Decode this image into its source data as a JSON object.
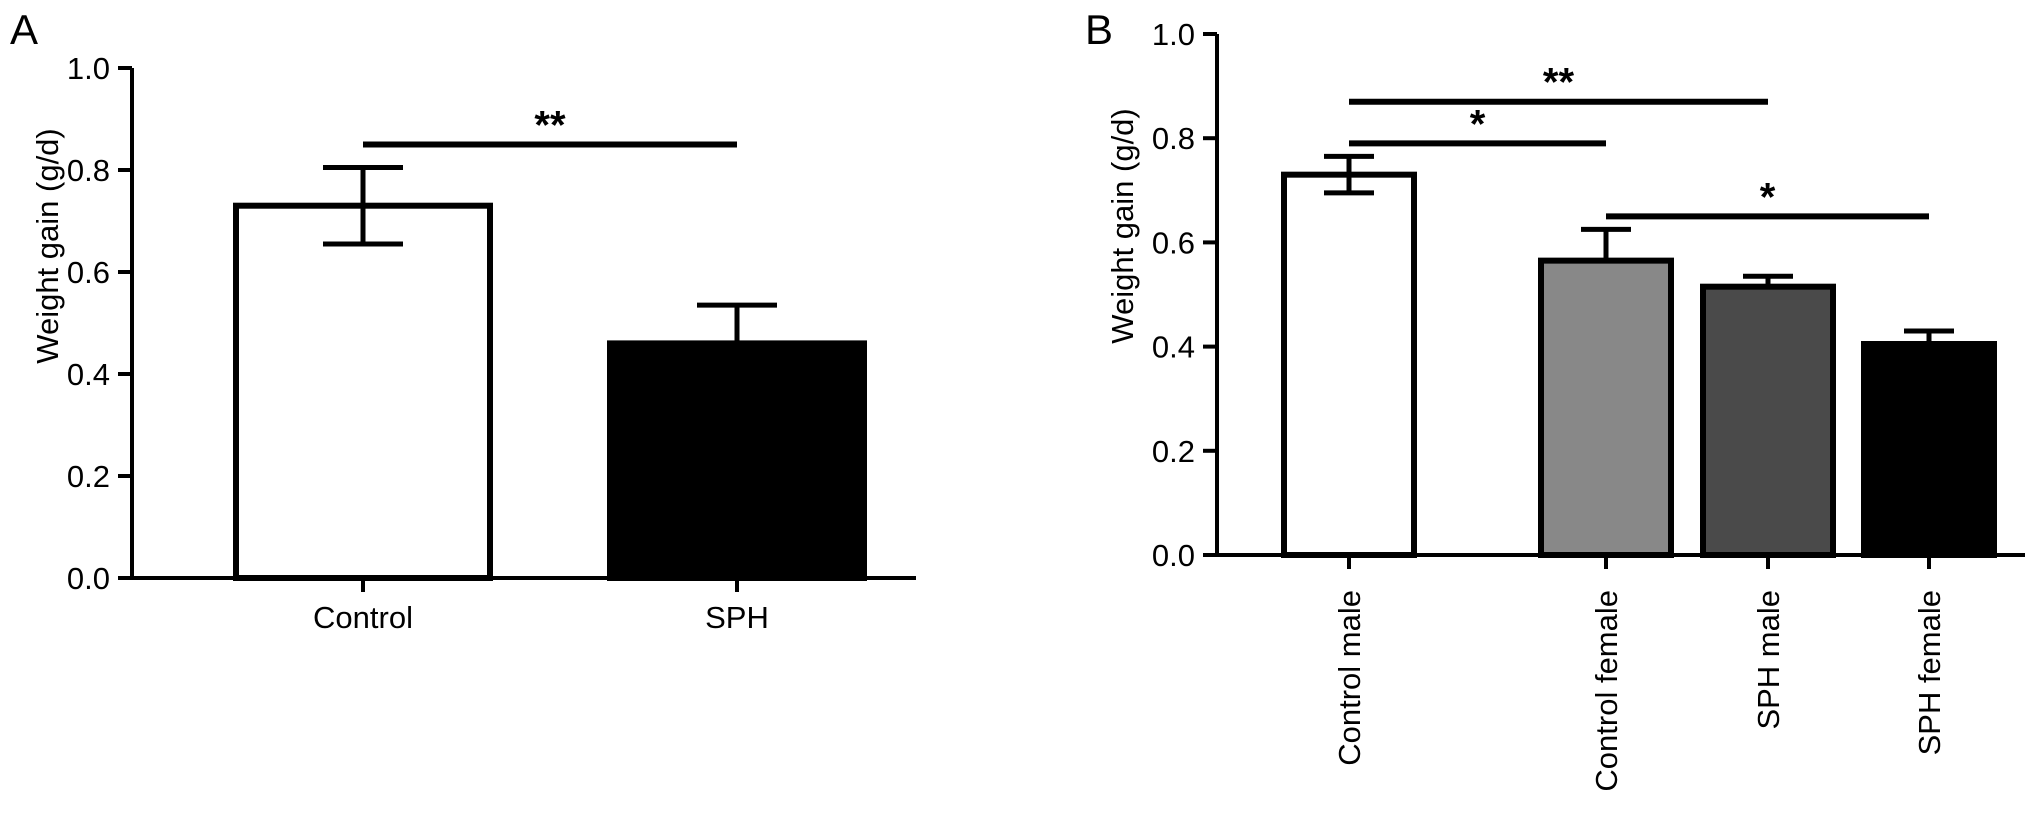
{
  "chart_data": [
    {
      "type": "bar",
      "panel_label": "A",
      "categories": [
        "Control",
        "SPH"
      ],
      "values": [
        0.73,
        0.46
      ],
      "errors": [
        0.075,
        0.075
      ],
      "bar_fills": [
        "#ffffff",
        "#000000"
      ],
      "ylabel": "Weight gain (g/d)",
      "xlabel": "",
      "ylim": [
        0,
        1.0
      ],
      "yticks": [
        "0.0",
        "0.2",
        "0.4",
        "0.6",
        "0.8",
        "1.0"
      ],
      "significance": [
        {
          "from": 0,
          "to": 1,
          "label": "**",
          "y": 0.85
        }
      ]
    },
    {
      "type": "bar",
      "panel_label": "B",
      "categories": [
        "Control male",
        "Control female",
        "SPH male",
        "SPH female"
      ],
      "values": [
        0.73,
        0.565,
        0.515,
        0.405
      ],
      "errors": [
        0.035,
        0.06,
        0.02,
        0.025
      ],
      "bar_fills": [
        "#ffffff",
        "#888888",
        "#4a4a4a",
        "#000000"
      ],
      "ylabel": "Weight gain (g/d)",
      "xlabel": "",
      "ylim": [
        0,
        1.0
      ],
      "yticks": [
        "0.0",
        "0.2",
        "0.4",
        "0.6",
        "0.8",
        "1.0"
      ],
      "significance": [
        {
          "from": 0,
          "to": 2,
          "label": "**",
          "y": 0.87
        },
        {
          "from": 0,
          "to": 1,
          "label": "*",
          "y": 0.79
        },
        {
          "from": 1,
          "to": 3,
          "label": "*",
          "y": 0.65
        }
      ]
    }
  ]
}
